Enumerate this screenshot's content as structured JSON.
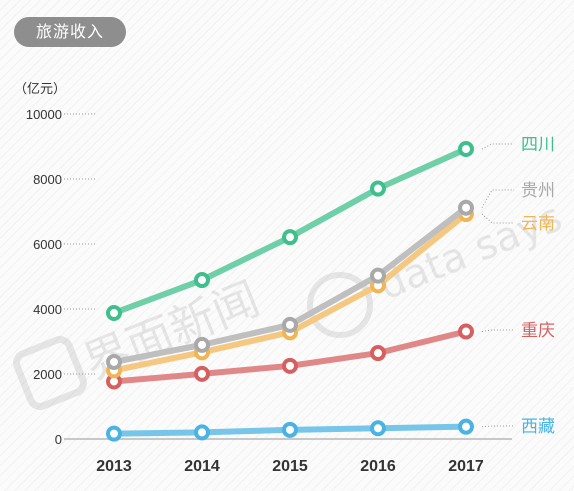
{
  "header": {
    "badge": "旅游收入",
    "unit": "（亿元）"
  },
  "watermark": {
    "brand": "界面新闻",
    "slogan": "data says"
  },
  "chart_data": {
    "type": "line",
    "title": "旅游收入",
    "ylabel": "（亿元）",
    "x": [
      "2013",
      "2014",
      "2015",
      "2016",
      "2017"
    ],
    "ylim": [
      0,
      10000
    ],
    "yticks": [
      0,
      2000,
      4000,
      6000,
      8000,
      10000
    ],
    "grid": false,
    "legend": "right-end-labels",
    "series": [
      {
        "name": "西藏",
        "color": "#4ab3e3",
        "values": [
          165,
          204,
          282,
          330,
          379
        ]
      },
      {
        "name": "重庆",
        "color": "#d66060",
        "values": [
          1770,
          2003,
          2250,
          2645,
          3308
        ]
      },
      {
        "name": "云南",
        "color": "#f0b656",
        "values": [
          2111,
          2666,
          3282,
          4726,
          6922
        ]
      },
      {
        "name": "贵州",
        "color": "#a9a9a9",
        "values": [
          2370,
          2896,
          3512,
          5027,
          7116
        ]
      },
      {
        "name": "四川",
        "color": "#3fbf8c",
        "values": [
          3877,
          4891,
          6210,
          7706,
          8923
        ]
      }
    ]
  }
}
